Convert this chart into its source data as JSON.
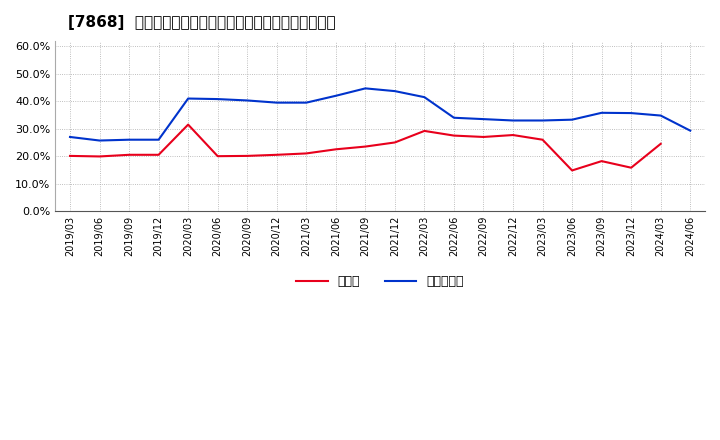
{
  "title": "[7868]  現顔金、有利子負債の総資産に対する比率の推移",
  "x_labels": [
    "2019/03",
    "2019/06",
    "2019/09",
    "2019/12",
    "2020/03",
    "2020/06",
    "2020/09",
    "2020/12",
    "2021/03",
    "2021/06",
    "2021/09",
    "2021/12",
    "2022/03",
    "2022/06",
    "2022/09",
    "2022/12",
    "2023/03",
    "2023/06",
    "2023/09",
    "2023/12",
    "2024/03",
    "2024/06"
  ],
  "cash": [
    0.201,
    0.199,
    0.205,
    0.205,
    0.315,
    0.2,
    0.201,
    0.205,
    0.21,
    0.225,
    0.235,
    0.25,
    0.292,
    0.275,
    0.27,
    0.277,
    0.26,
    0.148,
    0.182,
    0.158,
    0.245,
    null
  ],
  "debt": [
    0.27,
    0.257,
    0.26,
    0.26,
    0.41,
    0.408,
    0.403,
    0.395,
    0.395,
    0.42,
    0.447,
    0.437,
    0.415,
    0.34,
    0.335,
    0.33,
    0.33,
    0.333,
    0.358,
    0.357,
    0.348,
    0.293
  ],
  "cash_color": "#e8001c",
  "debt_color": "#0033cc",
  "background_color": "#ffffff",
  "grid_color": "#aaaaaa",
  "ylim": [
    0.0,
    0.62
  ],
  "yticks": [
    0.0,
    0.1,
    0.2,
    0.3,
    0.4,
    0.5,
    0.6
  ],
  "legend_cash": "現顔金",
  "legend_debt": "有利子負債"
}
